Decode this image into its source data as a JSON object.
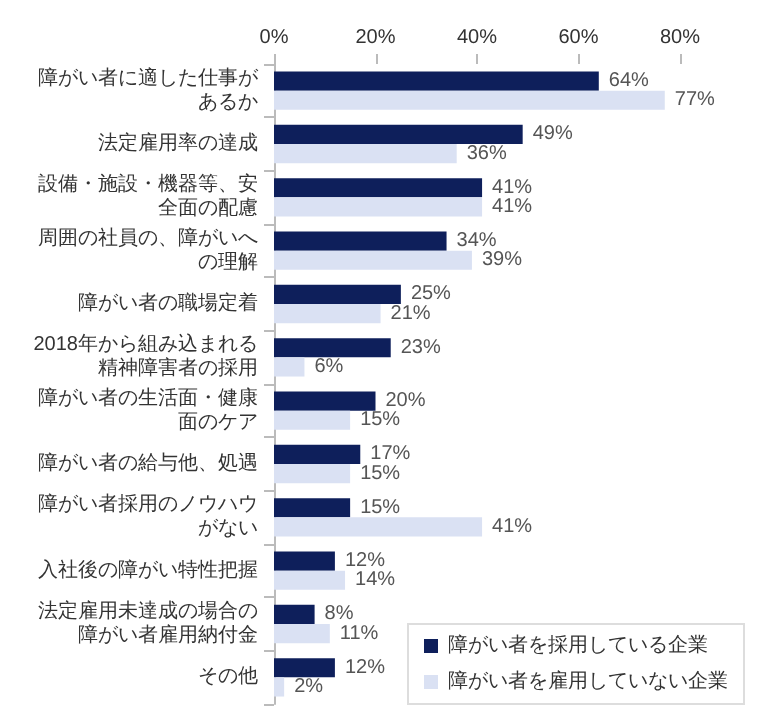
{
  "chart_data": {
    "type": "bar",
    "orientation": "horizontal",
    "categories": [
      "障がい者に適した仕事があるか",
      "法定雇用率の達成",
      "設備・施設・機器等、安全面の配慮",
      "周囲の社員の、障がいへの理解",
      "障がい者の職場定着",
      "2018年から組み込まれる精神障害者の採用",
      "障がい者の生活面・健康面のケア",
      "障がい者の給与他、処遇",
      "障がい者採用のノウハウがない",
      "入社後の障がい特性把握",
      "法定雇用未達成の場合の障がい者雇用納付金",
      "その他"
    ],
    "series": [
      {
        "name": "障がい者を採用している企業",
        "color": "#0e1f5b",
        "values": [
          64,
          49,
          41,
          34,
          25,
          23,
          20,
          17,
          15,
          12,
          8,
          12
        ],
        "value_labels": [
          "64%",
          "49%",
          "41%",
          "34%",
          "25%",
          "23%",
          "20%",
          "17%",
          "15%",
          "12%",
          "8%",
          "12%"
        ]
      },
      {
        "name": "障がい者を雇用していない企業",
        "color": "#dae1f3",
        "values": [
          77,
          36,
          41,
          39,
          21,
          6,
          15,
          15,
          41,
          14,
          11,
          2
        ],
        "value_labels": [
          "77%",
          "36%",
          "41%",
          "39%",
          "21%",
          "6%",
          "15%",
          "15%",
          "41%",
          "14%",
          "11%",
          "2%"
        ]
      }
    ],
    "xlim": [
      0,
      80
    ],
    "xticks": [
      {
        "value": 0,
        "label": "0%"
      },
      {
        "value": 20,
        "label": "20%"
      },
      {
        "value": 40,
        "label": "40%"
      },
      {
        "value": 60,
        "label": "60%"
      },
      {
        "value": 80,
        "label": "80%"
      }
    ],
    "grid": false,
    "legend": "bottom right"
  }
}
